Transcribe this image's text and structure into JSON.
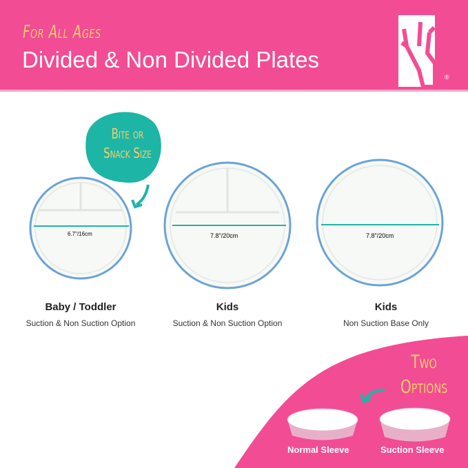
{
  "header": {
    "tagline": "For All Ages",
    "title": "Divided & Non Divided Plates",
    "logo_mark": "®"
  },
  "bubble": {
    "line1": "Bite or",
    "line2": "Snack Size"
  },
  "plates": [
    {
      "dimension": "6.7\"/16cm",
      "name": "Baby / Toddler",
      "option": "Suction & Non Suction Option"
    },
    {
      "dimension": "7.8\"/20cm",
      "name": "Kids",
      "option": "Suction & Non Suction Option"
    },
    {
      "dimension": "7.8\"/20cm",
      "name": "Kids",
      "option": "Non Suction Base Only"
    }
  ],
  "options": {
    "line1": "Two",
    "line2": "Options",
    "sleeves": [
      "Normal Sleeve",
      "Suction Sleeve"
    ]
  },
  "colors": {
    "pink": "#F24C94",
    "teal": "#1DB5A6",
    "yellow": "#F9CF6A",
    "rim": "#5B9BD5"
  }
}
